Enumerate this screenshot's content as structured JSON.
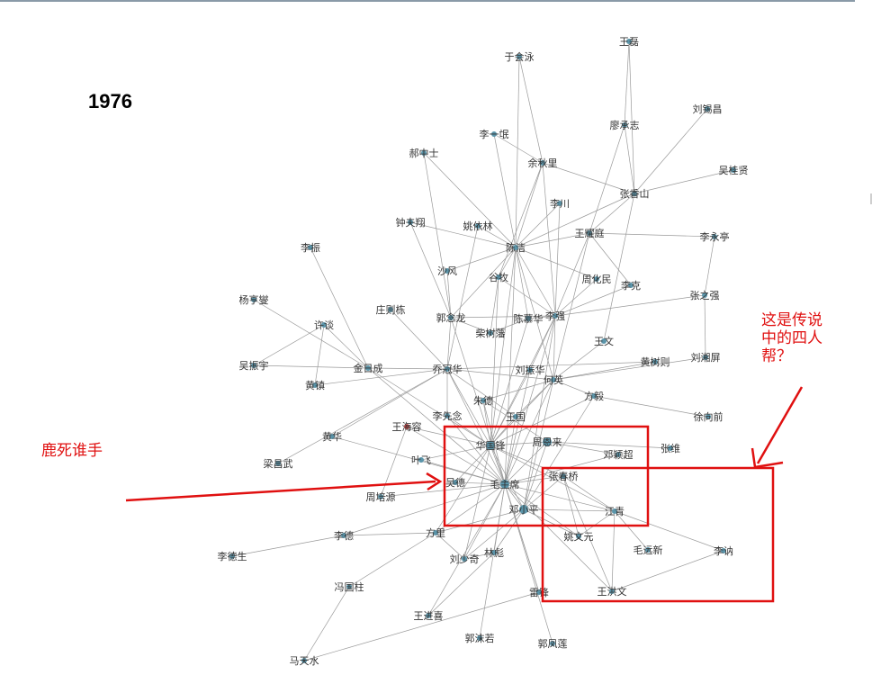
{
  "year": "1976",
  "annotations": {
    "gang_of_four": [
      "这是传说",
      "中的四人",
      "帮？"
    ],
    "deer": "鹿死谁手"
  },
  "colors": {
    "node": "#5b95aa",
    "node_highlight": "#c44545",
    "edge": "#9a9a9a",
    "annotation": "#e01010"
  },
  "nodes": [
    {
      "id": "wanglei",
      "label": "王磊"
    },
    {
      "id": "yuhuiyong",
      "label": "于会泳"
    },
    {
      "id": "liuxichang",
      "label": "刘锡昌"
    },
    {
      "id": "huchengzhi",
      "label": "廖承志"
    },
    {
      "id": "liyiyin",
      "label": "李一氓"
    },
    {
      "id": "haozhongshi",
      "label": "郝中士"
    },
    {
      "id": "yuqiuli",
      "label": "余秋里"
    },
    {
      "id": "wuguixian",
      "label": "吴桂贤"
    },
    {
      "id": "zhangxiangshan",
      "label": "张香山"
    },
    {
      "id": "lichuan",
      "label": "李川"
    },
    {
      "id": "zhongfuxiang",
      "label": "钟夫翔"
    },
    {
      "id": "yaoyilin",
      "label": "姚依林"
    },
    {
      "id": "chenjie",
      "label": "陈洁"
    },
    {
      "id": "wangyaoting",
      "label": "王耀庭"
    },
    {
      "id": "liyongting",
      "label": "李永亭"
    },
    {
      "id": "lizhen",
      "label": "李振"
    },
    {
      "id": "shafeng",
      "label": "沙风"
    },
    {
      "id": "guzhuo",
      "label": "谷牧"
    },
    {
      "id": "zhouhuamin",
      "label": "周化民"
    },
    {
      "id": "like",
      "label": "李克"
    },
    {
      "id": "zhangzhiqiang",
      "label": "张之强"
    },
    {
      "id": "yanghengxie",
      "label": "杨亨燮"
    },
    {
      "id": "zhuangzedong",
      "label": "庄则栋"
    },
    {
      "id": "guomolong",
      "label": "郭念龙"
    },
    {
      "id": "chenmuhua",
      "label": "陈慕华"
    },
    {
      "id": "liqiang",
      "label": "李强"
    },
    {
      "id": "xuyi",
      "label": "许谈"
    },
    {
      "id": "chaishufan",
      "label": "柴树藩"
    },
    {
      "id": "wangwen",
      "label": "王文"
    },
    {
      "id": "huangshuze",
      "label": "黄树则"
    },
    {
      "id": "liuxiangping",
      "label": "刘湘屏"
    },
    {
      "id": "wuzhenyu",
      "label": "吴振宇"
    },
    {
      "id": "jinricheng",
      "label": "金日成"
    },
    {
      "id": "qiaoguanhua",
      "label": "乔冠华"
    },
    {
      "id": "liuzhenhua",
      "label": "刘振华"
    },
    {
      "id": "heying",
      "label": "何英"
    },
    {
      "id": "huangzhen",
      "label": "黄镇"
    },
    {
      "id": "zhude",
      "label": "朱德"
    },
    {
      "id": "fangyi",
      "label": "方毅"
    },
    {
      "id": "xuxiangqian",
      "label": "徐向前"
    },
    {
      "id": "lixiannian",
      "label": "李先念"
    },
    {
      "id": "wangguo",
      "label": "王国"
    },
    {
      "id": "wanghairong",
      "label": "王海容"
    },
    {
      "id": "huanghua",
      "label": "黄华"
    },
    {
      "id": "zhouenlai",
      "label": "周恩来"
    },
    {
      "id": "huaguofeng",
      "label": "华国锋"
    },
    {
      "id": "dengyingchao",
      "label": "邓颖超"
    },
    {
      "id": "zhangjing",
      "label": "张维"
    },
    {
      "id": "liangchangwu",
      "label": "梁昌武"
    },
    {
      "id": "yefei",
      "label": "叶飞"
    },
    {
      "id": "zhangchunqiao",
      "label": "张春桥"
    },
    {
      "id": "wude",
      "label": "吴德"
    },
    {
      "id": "maozhuxi",
      "label": "毛主席"
    },
    {
      "id": "zhoupeiyuan",
      "label": "周培源"
    },
    {
      "id": "dengxiaoping",
      "label": "邓小平"
    },
    {
      "id": "jiangqing",
      "label": "江青"
    },
    {
      "id": "fangli",
      "label": "方里"
    },
    {
      "id": "lide",
      "label": "李德"
    },
    {
      "id": "yaowenyuan",
      "label": "姚文元"
    },
    {
      "id": "maoyuanxin",
      "label": "毛远新"
    },
    {
      "id": "lina",
      "label": "李讷"
    },
    {
      "id": "lidesheng",
      "label": "李德生"
    },
    {
      "id": "liushaoqi",
      "label": "刘少奇"
    },
    {
      "id": "linbiao",
      "label": "林彪"
    },
    {
      "id": "fengguozhu",
      "label": "冯国柱"
    },
    {
      "id": "leifeng",
      "label": "雷锋"
    },
    {
      "id": "wanghongwen",
      "label": "王洪文"
    },
    {
      "id": "wangjinxi",
      "label": "王进喜"
    },
    {
      "id": "guomoruo",
      "label": "郭沫若"
    },
    {
      "id": "guofenglian",
      "label": "郭凤莲"
    },
    {
      "id": "matianshui",
      "label": "马天水"
    }
  ]
}
